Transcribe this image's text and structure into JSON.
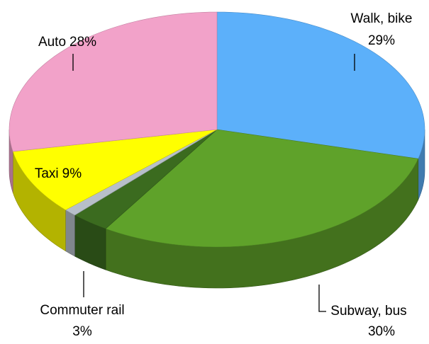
{
  "chart_data": {
    "type": "pie3d",
    "categories": [
      "Walk, bike",
      "Subway, bus",
      "Commuter rail",
      null,
      "Taxi",
      "Auto"
    ],
    "values": [
      29,
      30,
      3,
      1,
      9,
      28
    ],
    "value_labels": [
      "29%",
      "30%",
      "3%",
      null,
      "9%",
      "28%"
    ],
    "colors": [
      "#5cb0fa",
      "#5fa22a",
      "#3b6b1f",
      "#b7bfc9",
      "#ffff00",
      "#f2a2c9"
    ]
  }
}
